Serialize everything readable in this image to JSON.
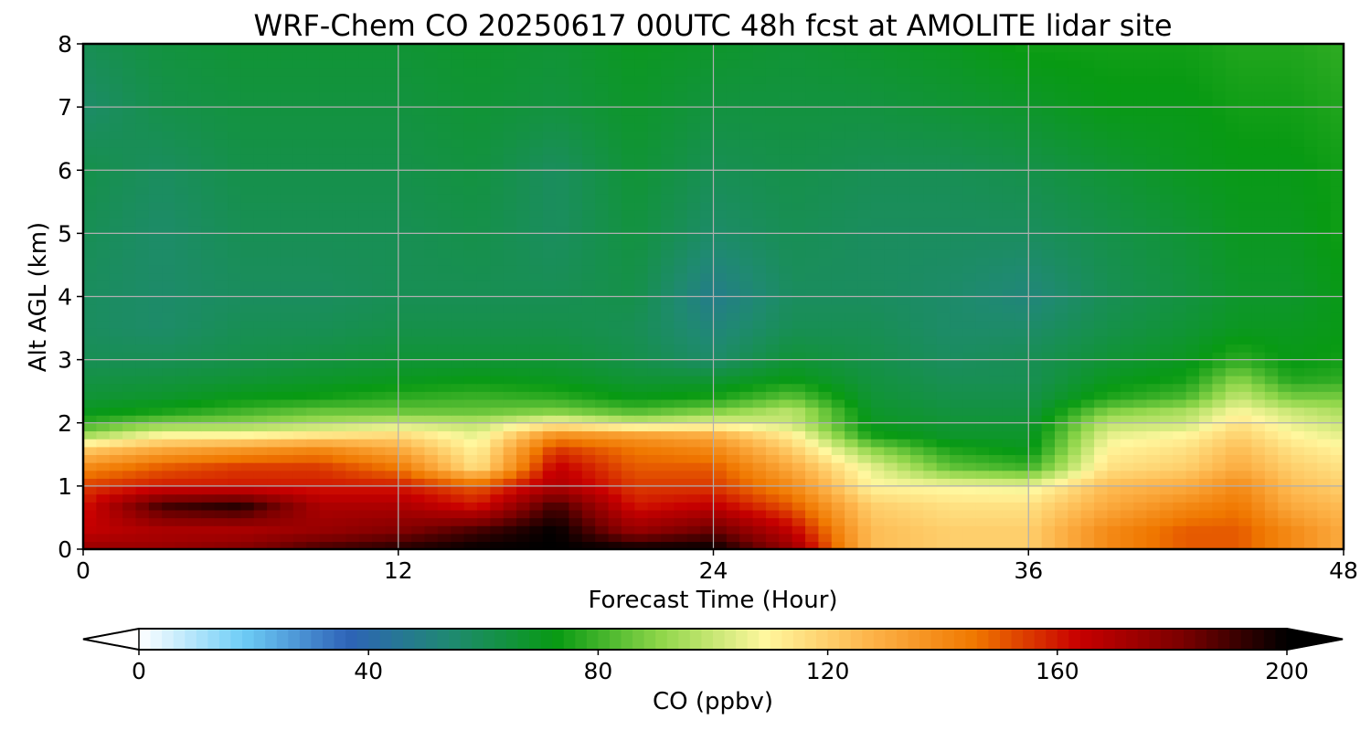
{
  "chart_data": {
    "type": "heatmap",
    "title": "WRF-Chem CO  20250617 00UTC 48h fcst at AMOLITE lidar site",
    "xlabel": "Forecast Time (Hour)",
    "ylabel": "Alt AGL (km)",
    "x_ticks": [
      "0",
      "12",
      "24",
      "36",
      "48"
    ],
    "y_ticks": [
      "0",
      "1",
      "2",
      "3",
      "4",
      "5",
      "6",
      "7",
      "8"
    ],
    "xlim": [
      0,
      48
    ],
    "ylim": [
      0,
      8
    ],
    "grid": true,
    "colorbar": {
      "label": "CO  (ppbv)",
      "ticks": [
        "0",
        "40",
        "80",
        "120",
        "160",
        "200"
      ],
      "range": [
        0,
        200
      ],
      "extend": "both",
      "colors": [
        "#ffffff",
        "#6ecdf6",
        "#2e63b8",
        "#1f8a70",
        "#089a13",
        "#8fd64a",
        "#fff79e",
        "#fdb44a",
        "#f07800",
        "#c80000",
        "#7a0000",
        "#000000"
      ]
    },
    "times": [
      0,
      3,
      6,
      9,
      12,
      15,
      18,
      21,
      24,
      27,
      30,
      33,
      36,
      39,
      42,
      44,
      46,
      48
    ],
    "altitudes": [
      0,
      0.3,
      0.7,
      1.0,
      1.3,
      1.6,
      1.8,
      2.0,
      2.2,
      2.4,
      2.7,
      3.0,
      3.5,
      4.0,
      5.0,
      6.0,
      7.0,
      8.0
    ],
    "values": [
      [
        175,
        175,
        180,
        190,
        195,
        200,
        200,
        200,
        200,
        175,
        125,
        120,
        120,
        140,
        150,
        150,
        140,
        130
      ],
      [
        165,
        170,
        170,
        175,
        180,
        190,
        200,
        175,
        185,
        165,
        125,
        120,
        120,
        140,
        150,
        150,
        140,
        130
      ],
      [
        160,
        190,
        195,
        170,
        170,
        160,
        190,
        160,
        165,
        150,
        120,
        115,
        115,
        130,
        140,
        145,
        130,
        125
      ],
      [
        155,
        160,
        160,
        160,
        160,
        150,
        170,
        155,
        155,
        140,
        110,
        108,
        106,
        125,
        130,
        140,
        125,
        120
      ],
      [
        140,
        150,
        155,
        155,
        145,
        115,
        165,
        150,
        150,
        130,
        105,
        85,
        80,
        115,
        120,
        130,
        120,
        115
      ],
      [
        120,
        130,
        135,
        140,
        130,
        110,
        155,
        145,
        140,
        120,
        90,
        75,
        70,
        110,
        115,
        125,
        115,
        110
      ],
      [
        95,
        110,
        110,
        115,
        118,
        105,
        140,
        135,
        130,
        112,
        75,
        68,
        68,
        105,
        110,
        120,
        110,
        105
      ],
      [
        78,
        88,
        90,
        95,
        100,
        98,
        110,
        100,
        105,
        100,
        70,
        66,
        66,
        98,
        100,
        115,
        105,
        100
      ],
      [
        70,
        74,
        80,
        85,
        85,
        85,
        88,
        82,
        88,
        98,
        68,
        64,
        64,
        88,
        95,
        108,
        100,
        95
      ],
      [
        66,
        68,
        72,
        74,
        78,
        80,
        78,
        72,
        75,
        85,
        66,
        62,
        62,
        76,
        82,
        100,
        88,
        88
      ],
      [
        63,
        64,
        66,
        68,
        70,
        72,
        70,
        66,
        66,
        72,
        64,
        60,
        60,
        70,
        74,
        90,
        76,
        78
      ],
      [
        60,
        60,
        62,
        64,
        66,
        66,
        66,
        62,
        56,
        66,
        62,
        58,
        60,
        66,
        70,
        78,
        72,
        74
      ],
      [
        58,
        56,
        60,
        60,
        62,
        62,
        62,
        60,
        52,
        60,
        60,
        56,
        56,
        62,
        66,
        70,
        70,
        72
      ],
      [
        58,
        56,
        58,
        58,
        60,
        60,
        60,
        62,
        48,
        58,
        58,
        56,
        52,
        60,
        64,
        68,
        68,
        72
      ],
      [
        60,
        56,
        60,
        60,
        60,
        62,
        58,
        64,
        56,
        60,
        58,
        58,
        58,
        62,
        66,
        70,
        70,
        74
      ],
      [
        62,
        58,
        62,
        62,
        62,
        64,
        58,
        66,
        60,
        62,
        60,
        60,
        62,
        66,
        70,
        72,
        72,
        74
      ],
      [
        56,
        62,
        64,
        64,
        64,
        66,
        64,
        68,
        64,
        64,
        64,
        66,
        68,
        72,
        72,
        74,
        74,
        76
      ],
      [
        60,
        64,
        66,
        66,
        66,
        68,
        66,
        70,
        68,
        66,
        68,
        70,
        74,
        74,
        74,
        76,
        76,
        78
      ]
    ]
  }
}
